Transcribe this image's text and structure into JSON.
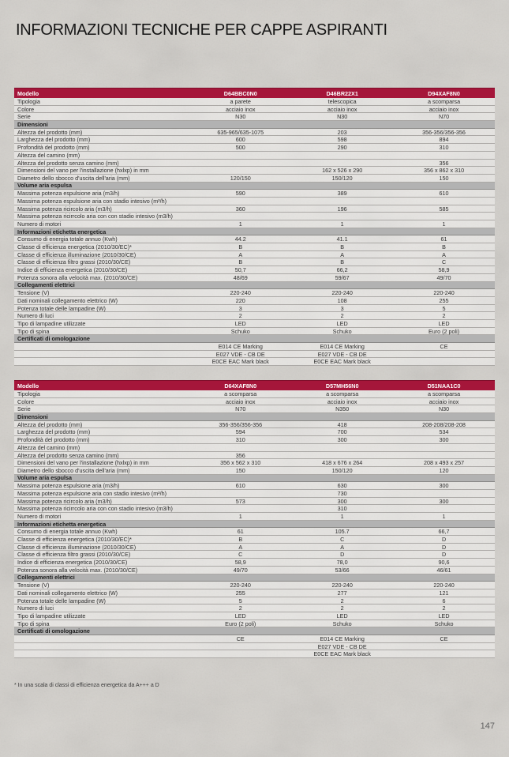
{
  "page": {
    "title": "INFORMAZIONI TECNICHE PER CAPPE ASPIRANTI",
    "footnote": "* In una scala di classi di efficienza energetica da A+++ a D",
    "page_number": "147"
  },
  "colors": {
    "header_red": "#a5163a",
    "section_gray": "#b2b2b2",
    "background_gray": "#d3d0cb"
  },
  "tables": [
    {
      "header": {
        "label": "Modello",
        "models": [
          "D64BBC0N0",
          "D46BR22X1",
          "D94XAF8N0"
        ]
      },
      "rows": [
        {
          "label": "Tipologia",
          "values": [
            "a parete",
            "telescopica",
            "a scomparsa"
          ]
        },
        {
          "label": "Colore",
          "values": [
            "acciaio inox",
            "acciaio inox",
            "acciaio inox"
          ]
        },
        {
          "label": "Serie",
          "values": [
            "N30",
            "N30",
            "N70"
          ]
        },
        {
          "section": "Dimensioni"
        },
        {
          "label": "Altezza del prodotto (mm)",
          "values": [
            "635-965/635-1075",
            "203",
            "356-356/356-356"
          ]
        },
        {
          "label": "Larghezza del prodotto (mm)",
          "values": [
            "600",
            "598",
            "894"
          ]
        },
        {
          "label": "Profondità del prodotto (mm)",
          "values": [
            "500",
            "290",
            "310"
          ]
        },
        {
          "label": "Altezza del camino (mm)",
          "values": [
            "",
            "",
            ""
          ]
        },
        {
          "label": "Altezza del prodotto senza camino (mm)",
          "values": [
            "",
            "",
            "356"
          ]
        },
        {
          "label": "Dimensioni del vano per l'installazione (hxlxp) in mm",
          "values": [
            "",
            "162 x 526 x 290",
            "356 x 862 x 310"
          ]
        },
        {
          "label": "Diametro dello sbocco d'uscita dell'aria (mm)",
          "values": [
            "120/150",
            "150/120",
            "150"
          ]
        },
        {
          "section": "Volume aria espulsa"
        },
        {
          "label": "Massima potenza espulsione aria (m3/h)",
          "values": [
            "590",
            "389",
            "610"
          ]
        },
        {
          "label": "Massima potenza espulsione aria con stadio intesivo (m³/h)",
          "values": [
            "",
            "",
            ""
          ]
        },
        {
          "label": "Massima potenza ricircolo aria (m3/h)",
          "values": [
            "360",
            "196",
            "585"
          ]
        },
        {
          "label": "Massima potenza ricirrcolo aria con con stadio intesivo (m3/h)",
          "values": [
            "",
            "",
            ""
          ]
        },
        {
          "label": "Numero di motori",
          "values": [
            "1",
            "1",
            "1"
          ]
        },
        {
          "section": "Informazioni etichetta energetica"
        },
        {
          "label": "Consumo di energia totale annuo (Kwh)",
          "values": [
            "44.2",
            "41.1",
            "61"
          ]
        },
        {
          "label": "Classe di efficienza energetica (2010/30/EC)*",
          "values": [
            "B",
            "B",
            "B"
          ]
        },
        {
          "label": "Classe di efficienza illuminazione (2010/30/CE)",
          "values": [
            "A",
            "A",
            "A"
          ]
        },
        {
          "label": "Classe di efficienza filtro grassi (2010/30/CE)",
          "values": [
            "B",
            "B",
            "C"
          ]
        },
        {
          "label": "Indice di efficienza energetica (2010/30/CE)",
          "values": [
            "50,7",
            "66,2",
            "58,9"
          ]
        },
        {
          "label": "Potenza sonora alla velocità max. (2010/30/CE)",
          "values": [
            "48/69",
            "59/67",
            "49/70"
          ]
        },
        {
          "section": "Collegamenti elettrici"
        },
        {
          "label": "Tensione (V)",
          "values": [
            "220-240",
            "220-240",
            "220-240"
          ]
        },
        {
          "label": "Dati nominali collegamento elettrico (W)",
          "values": [
            "220",
            "108",
            "255"
          ]
        },
        {
          "label": "Potenza totale delle lampadine (W)",
          "values": [
            "3",
            "3",
            "5"
          ]
        },
        {
          "label": "Numero di luci",
          "values": [
            "2",
            "2",
            "2"
          ]
        },
        {
          "label": "Tipo di lampadine utilizzate",
          "values": [
            "LED",
            "LED",
            "LED"
          ]
        },
        {
          "label": "Tipo di spina",
          "values": [
            "Schuko",
            "Schuko",
            "Euro (2 poli)"
          ]
        },
        {
          "section": "Certificati di omologazione"
        },
        {
          "label": "",
          "values": [
            "E014 CE Marking",
            "E014 CE Marking",
            "CE"
          ]
        },
        {
          "label": "",
          "values": [
            "E027 VDE - CB DE",
            "E027 VDE - CB DE",
            ""
          ]
        },
        {
          "label": "",
          "values": [
            "E0CE EAC Mark black",
            "E0CE EAC Mark black",
            ""
          ]
        }
      ]
    },
    {
      "header": {
        "label": "Modello",
        "models": [
          "D64XAF8N0",
          "D57MH56N0",
          "D51NAA1C0"
        ]
      },
      "rows": [
        {
          "label": "Tipologia",
          "values": [
            "a scomparsa",
            "a scomparsa",
            "a scomparsa"
          ]
        },
        {
          "label": "Colore",
          "values": [
            "acciaio inox",
            "acciaio inox",
            "acciaio inox"
          ]
        },
        {
          "label": "Serie",
          "values": [
            "N70",
            "N350",
            "N30"
          ]
        },
        {
          "section": "Dimensioni"
        },
        {
          "label": "Altezza del prodotto (mm)",
          "values": [
            "356-356/356-356",
            "418",
            "208-208/208-208"
          ]
        },
        {
          "label": "Larghezza del prodotto (mm)",
          "values": [
            "594",
            "700",
            "534"
          ]
        },
        {
          "label": "Profondità del prodotto (mm)",
          "values": [
            "310",
            "300",
            "300"
          ]
        },
        {
          "label": "Altezza del camino (mm)",
          "values": [
            "",
            "",
            ""
          ]
        },
        {
          "label": "Altezza del prodotto senza camino (mm)",
          "values": [
            "356",
            "",
            ""
          ]
        },
        {
          "label": "Dimensioni del vano per l'installazione (hxlxp) in mm",
          "values": [
            "356 x 562 x 310",
            "418 x 676 x 264",
            "208 x 493 x 257"
          ]
        },
        {
          "label": "Diametro dello sbocco d'uscita dell'aria (mm)",
          "values": [
            "150",
            "150/120",
            "120"
          ]
        },
        {
          "section": "Volume aria espulsa"
        },
        {
          "label": "Massima potenza espulsione aria (m3/h)",
          "values": [
            "610",
            "630",
            "300"
          ]
        },
        {
          "label": "Massima potenza espulsione aria con stadio intesivo (m³/h)",
          "values": [
            "",
            "730",
            ""
          ]
        },
        {
          "label": "Massima potenza ricircolo aria (m3/h)",
          "values": [
            "573",
            "300",
            "300"
          ]
        },
        {
          "label": "Massima potenza ricirrcolo aria con con stadio intesivo (m3/h)",
          "values": [
            "",
            "310",
            ""
          ]
        },
        {
          "label": "Numero di motori",
          "values": [
            "1",
            "1",
            "1"
          ]
        },
        {
          "section": "Informazioni etichetta energetica"
        },
        {
          "label": "Consumo di energia totale annuo (Kwh)",
          "values": [
            "61",
            "105.7",
            "66,7"
          ]
        },
        {
          "label": "Classe di efficienza energetica (2010/30/EC)*",
          "values": [
            "B",
            "C",
            "D"
          ]
        },
        {
          "label": "Classe di efficienza illuminazione (2010/30/CE)",
          "values": [
            "A",
            "A",
            "D"
          ]
        },
        {
          "label": "Classe di efficienza filtro grassi (2010/30/CE)",
          "values": [
            "C",
            "D",
            "D"
          ]
        },
        {
          "label": "Indice di efficienza energetica (2010/30/CE)",
          "values": [
            "58,9",
            "78,0",
            "90,6"
          ]
        },
        {
          "label": "Potenza sonora alla velocità max. (2010/30/CE)",
          "values": [
            "49/70",
            "53/66",
            "46/61"
          ]
        },
        {
          "section": "Collegamenti elettrici"
        },
        {
          "label": "Tensione (V)",
          "values": [
            "220-240",
            "220-240",
            "220-240"
          ]
        },
        {
          "label": "Dati nominali collegamento elettrico (W)",
          "values": [
            "255",
            "277",
            "121"
          ]
        },
        {
          "label": "Potenza totale delle lampadine (W)",
          "values": [
            "5",
            "2",
            "6"
          ]
        },
        {
          "label": "Numero di luci",
          "values": [
            "2",
            "2",
            "2"
          ]
        },
        {
          "label": "Tipo di lampadine utilizzate",
          "values": [
            "LED",
            "LED",
            "LED"
          ]
        },
        {
          "label": "Tipo di spina",
          "values": [
            "Euro (2 poli)",
            "Schuko",
            "Schuko"
          ]
        },
        {
          "section": "Certificati di omologazione"
        },
        {
          "label": "",
          "values": [
            "CE",
            "E014 CE Marking",
            "CE"
          ]
        },
        {
          "label": "",
          "values": [
            "",
            "E027 VDE - CB DE",
            ""
          ]
        },
        {
          "label": "",
          "values": [
            "",
            "E0CE EAC Mark black",
            ""
          ]
        }
      ]
    }
  ]
}
